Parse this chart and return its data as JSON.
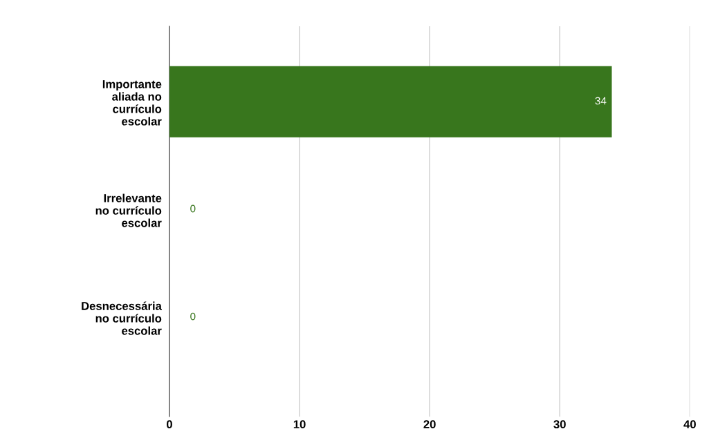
{
  "chart_data": {
    "type": "bar",
    "orientation": "horizontal",
    "categories": [
      "Importante aliada no currículo escolar",
      "Irrelevante no currículo escolar",
      "Desnecessária no currículo escolar"
    ],
    "values": [
      34,
      0,
      0
    ],
    "color": "#38761d",
    "xlim": [
      0,
      40
    ],
    "xticks": [
      0,
      10,
      20,
      30,
      40
    ],
    "grid": "x",
    "data_labels": true
  }
}
